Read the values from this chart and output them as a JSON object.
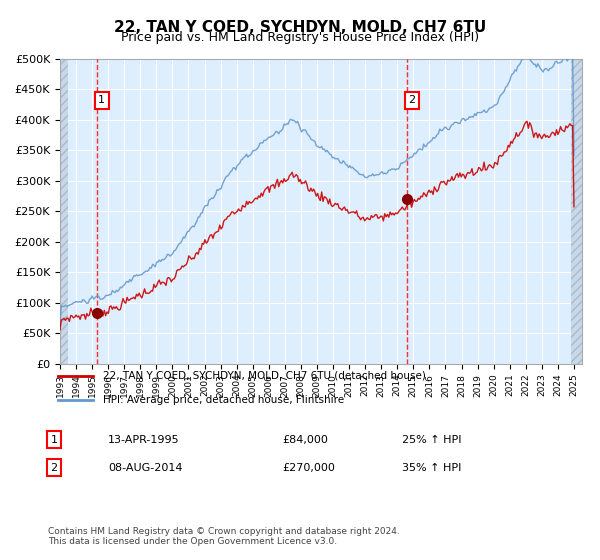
{
  "title": "22, TAN Y COED, SYCHDYN, MOLD, CH7 6TU",
  "subtitle": "Price paid vs. HM Land Registry's House Price Index (HPI)",
  "xlabel": "",
  "ylabel": "",
  "ylim": [
    0,
    500000
  ],
  "yticks": [
    0,
    50000,
    100000,
    150000,
    200000,
    250000,
    300000,
    350000,
    400000,
    450000,
    500000
  ],
  "ytick_labels": [
    "£0",
    "£50K",
    "£100K",
    "£150K",
    "£200K",
    "£250K",
    "£300K",
    "£350K",
    "£400K",
    "£450K",
    "£500K"
  ],
  "sale1_date": "13-APR-1995",
  "sale1_price": 84000,
  "sale1_label": "25% ↑ HPI",
  "sale2_date": "08-AUG-2014",
  "sale2_price": 270000,
  "sale2_label": "35% ↑ HPI",
  "sale1_year": 1995.28,
  "sale2_year": 2014.6,
  "legend_line1": "22, TAN Y COED, SYCHDYN, MOLD, CH7 6TU (detached house)",
  "legend_line2": "HPI: Average price, detached house, Flintshire",
  "footnote": "Contains HM Land Registry data © Crown copyright and database right 2024.\nThis data is licensed under the Open Government Licence v3.0.",
  "red_color": "#cc0000",
  "blue_color": "#6699cc",
  "bg_color": "#ddeeff",
  "hatch_color": "#bbccdd",
  "grid_color": "#ffffff",
  "title_fontsize": 11,
  "subtitle_fontsize": 9,
  "annotation_fontsize": 8,
  "tick_fontsize": 8
}
